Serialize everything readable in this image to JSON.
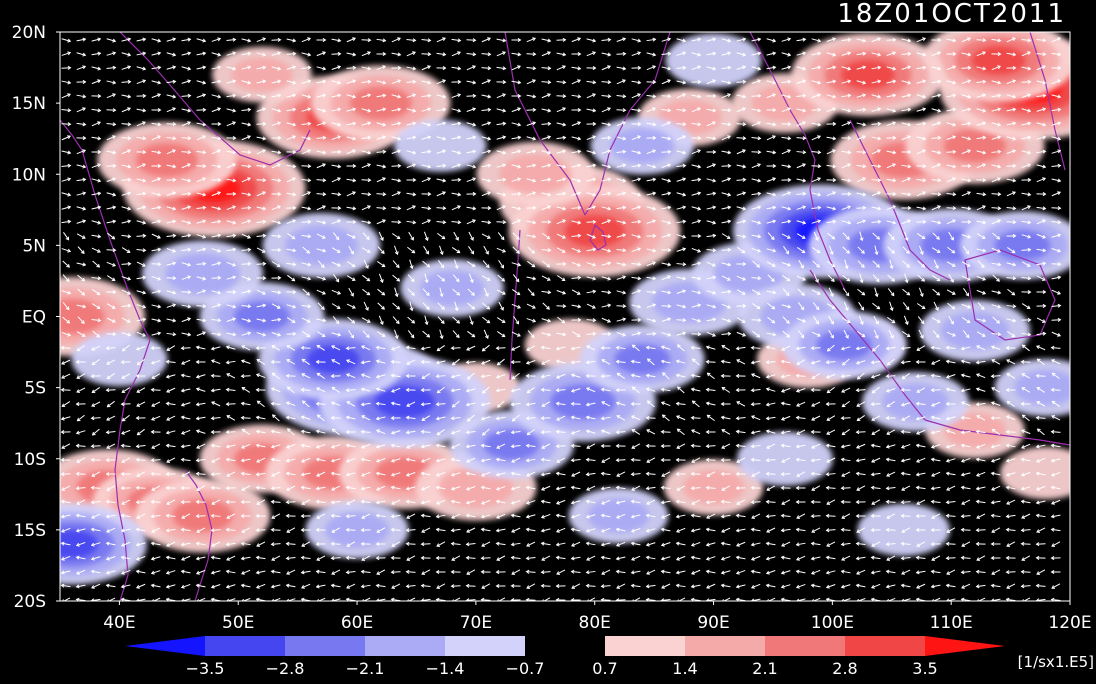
{
  "timestamp": "18Z01OCT2011",
  "units": "[1/sx1.E5]",
  "lat_labels": [
    "20N",
    "15N",
    "10N",
    "5N",
    "EQ",
    "5S",
    "10S",
    "15S",
    "20S"
  ],
  "lon_labels": [
    "40E",
    "50E",
    "60E",
    "70E",
    "80E",
    "90E",
    "100E",
    "110E",
    "120E"
  ],
  "colorbar": {
    "tick_labels": [
      "-3.5",
      "-2.8",
      "-2.1",
      "-1.4",
      "-0.7",
      "0.7",
      "1.4",
      "2.1",
      "2.8",
      "3.5"
    ],
    "colors": [
      "#1414ff",
      "#4646f0",
      "#7878f0",
      "#aaaaf5",
      "#d2d2fa",
      "#000000",
      "#fad2d2",
      "#f5aaaa",
      "#f07878",
      "#f04646",
      "#ff1414"
    ]
  },
  "map": {
    "lon_range": [
      35,
      120
    ],
    "lat_range": [
      -20,
      20
    ],
    "coast_color": "#9b2fae",
    "vector_color": "#ffffff"
  },
  "fields": [
    {
      "lon": 48,
      "lat": 9,
      "v": 3.4
    },
    {
      "lon": 44,
      "lat": 11,
      "v": 2.2
    },
    {
      "lon": 58,
      "lat": 14,
      "v": 2.6
    },
    {
      "lon": 62,
      "lat": 15,
      "v": 2.2
    },
    {
      "lon": 52,
      "lat": 17,
      "v": 1.1
    },
    {
      "lon": 78,
      "lat": 8,
      "v": 2.3
    },
    {
      "lon": 80,
      "lat": 6,
      "v": 3.1
    },
    {
      "lon": 75,
      "lat": 10,
      "v": 1.6
    },
    {
      "lon": 88,
      "lat": 14,
      "v": 1.2
    },
    {
      "lon": 96,
      "lat": 15,
      "v": 1.3
    },
    {
      "lon": 106,
      "lat": 11,
      "v": 2.4
    },
    {
      "lon": 112,
      "lat": 12,
      "v": 2.2
    },
    {
      "lon": 117,
      "lat": 16,
      "v": 3.6
    },
    {
      "lon": 114,
      "lat": 18,
      "v": 2.6
    },
    {
      "lon": 103,
      "lat": 17,
      "v": 2.6
    },
    {
      "lon": 36,
      "lat": 0,
      "v": 2.4
    },
    {
      "lon": 39,
      "lat": -12,
      "v": 2.2
    },
    {
      "lon": 43,
      "lat": -13,
      "v": 1.8
    },
    {
      "lon": 47,
      "lat": -14,
      "v": 2.1
    },
    {
      "lon": 52,
      "lat": -10,
      "v": 1.8
    },
    {
      "lon": 58,
      "lat": -11,
      "v": 2.1
    },
    {
      "lon": 64,
      "lat": -11,
      "v": 2.0
    },
    {
      "lon": 70,
      "lat": -12,
      "v": 1.7
    },
    {
      "lon": 90,
      "lat": -12,
      "v": 1.1
    },
    {
      "lon": 98,
      "lat": -3,
      "v": 1.2
    },
    {
      "lon": 102,
      "lat": -2,
      "v": 0.9
    },
    {
      "lon": 112,
      "lat": -8,
      "v": 1.1
    },
    {
      "lon": 118,
      "lat": -11,
      "v": 0.9
    },
    {
      "lon": 78,
      "lat": -2,
      "v": 0.9
    },
    {
      "lon": 70,
      "lat": -5,
      "v": 0.8
    },
    {
      "lon": 60,
      "lat": -5,
      "v": -3.4
    },
    {
      "lon": 64,
      "lat": -6,
      "v": -3.1
    },
    {
      "lon": 58,
      "lat": -3,
      "v": -2.5
    },
    {
      "lon": 52,
      "lat": 0,
      "v": -1.8
    },
    {
      "lon": 47,
      "lat": 3,
      "v": -1.7
    },
    {
      "lon": 57,
      "lat": 5,
      "v": -1.6
    },
    {
      "lon": 68,
      "lat": 2,
      "v": -1.2
    },
    {
      "lon": 40,
      "lat": -3,
      "v": -1.0
    },
    {
      "lon": 73,
      "lat": -9,
      "v": -1.8
    },
    {
      "lon": 79,
      "lat": -6,
      "v": -2.4
    },
    {
      "lon": 84,
      "lat": -3,
      "v": -1.8
    },
    {
      "lon": 88,
      "lat": 1,
      "v": -1.7
    },
    {
      "lon": 93,
      "lat": 3,
      "v": -1.5
    },
    {
      "lon": 99,
      "lat": 6,
      "v": -3.2
    },
    {
      "lon": 104,
      "lat": 5,
      "v": -2.3
    },
    {
      "lon": 110,
      "lat": 5,
      "v": -2.1
    },
    {
      "lon": 116,
      "lat": 5,
      "v": -1.8
    },
    {
      "lon": 97,
      "lat": 0,
      "v": -1.6
    },
    {
      "lon": 101,
      "lat": -2,
      "v": -1.8
    },
    {
      "lon": 112,
      "lat": -1,
      "v": -1.4
    },
    {
      "lon": 118,
      "lat": -5,
      "v": -1.2
    },
    {
      "lon": 36,
      "lat": -16,
      "v": -2.5
    },
    {
      "lon": 60,
      "lat": -15,
      "v": -1.2
    },
    {
      "lon": 82,
      "lat": -14,
      "v": -1.1
    },
    {
      "lon": 96,
      "lat": -10,
      "v": -1.0
    },
    {
      "lon": 106,
      "lat": -15,
      "v": -0.9
    },
    {
      "lon": 67,
      "lat": 12,
      "v": -0.9
    },
    {
      "lon": 84,
      "lat": 12,
      "v": -1.2
    },
    {
      "lon": 90,
      "lat": 18,
      "v": -1.0
    },
    {
      "lon": 107,
      "lat": -6,
      "v": -1.3
    }
  ]
}
